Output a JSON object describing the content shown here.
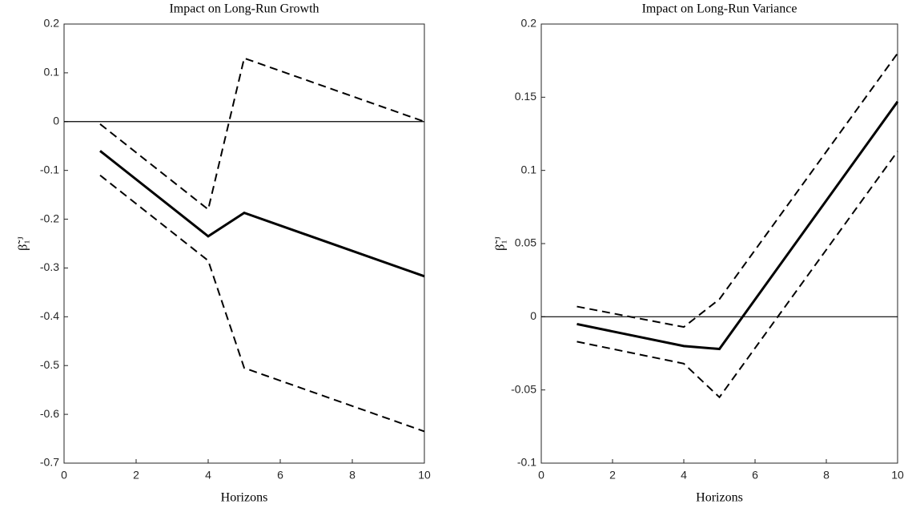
{
  "chart_data": [
    {
      "type": "line",
      "title": "Impact on Long-Run Growth",
      "x_label": "Horizons",
      "y_label": "β̃₁ᴶ",
      "x": [
        1,
        4,
        5,
        10
      ],
      "xlim": [
        0,
        10
      ],
      "xticks": [
        0,
        2,
        4,
        6,
        8,
        10
      ],
      "ylim": [
        -0.7,
        0.2
      ],
      "yticks": [
        -0.7,
        -0.6,
        -0.5,
        -0.4,
        -0.3,
        -0.2,
        -0.1,
        0,
        0.1,
        0.2
      ],
      "hline": 0,
      "series": [
        {
          "color": "#000000",
          "style": "solid",
          "values": [
            -0.06,
            -0.235,
            -0.187,
            -0.317
          ]
        },
        {
          "color": "#000000",
          "style": "dashed",
          "values": [
            -0.005,
            -0.18,
            0.13,
            0.0
          ]
        },
        {
          "color": "#000000",
          "style": "dashed",
          "values": [
            -0.11,
            -0.285,
            -0.505,
            -0.635
          ]
        }
      ]
    },
    {
      "type": "line",
      "title": "Impact on Long-Run Variance",
      "x_label": "Horizons",
      "y_label": "β̃₁ᴶ",
      "x": [
        1,
        4,
        5,
        10
      ],
      "xlim": [
        0,
        10
      ],
      "xticks": [
        0,
        2,
        4,
        6,
        8,
        10
      ],
      "ylim": [
        -0.1,
        0.2
      ],
      "yticks": [
        -0.1,
        -0.05,
        0,
        0.05,
        0.1,
        0.15,
        0.2
      ],
      "hline": 0,
      "series": [
        {
          "color": "#000000",
          "style": "solid",
          "values": [
            -0.005,
            -0.02,
            -0.022,
            0.147
          ]
        },
        {
          "color": "#000000",
          "style": "dashed",
          "values": [
            0.007,
            -0.007,
            0.012,
            0.18
          ]
        },
        {
          "color": "#000000",
          "style": "dashed",
          "values": [
            -0.017,
            -0.032,
            -0.055,
            0.113
          ]
        }
      ]
    }
  ]
}
